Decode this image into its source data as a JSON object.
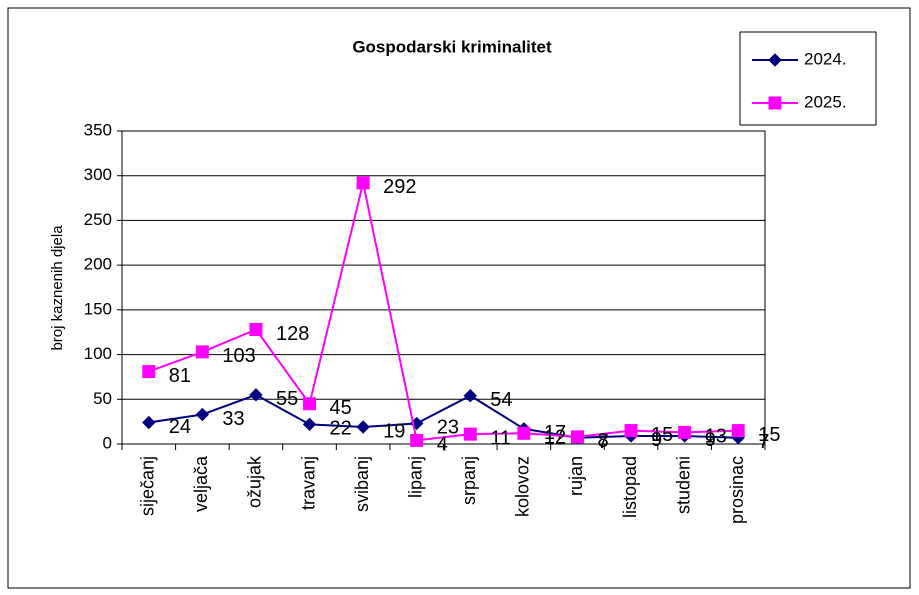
{
  "chart_data": {
    "type": "line",
    "title": "Gospodarski kriminalitet",
    "y_label": "broj kaznenih djela",
    "categories": [
      "siječanj",
      "veljača",
      "ožujak",
      "travanj",
      "svibanj",
      "lipanj",
      "srpanj",
      "kolovoz",
      "rujan",
      "listopad",
      "studeni",
      "prosinac"
    ],
    "series": [
      {
        "name": "2024.",
        "color": "#000080",
        "marker": "diamond",
        "values": [
          24,
          33,
          55,
          22,
          19,
          23,
          54,
          17,
          7,
          9,
          9,
          7
        ]
      },
      {
        "name": "2025.",
        "color": "#ff00ff",
        "marker": "square",
        "values": [
          81,
          103,
          128,
          45,
          292,
          4,
          11,
          12,
          8,
          15,
          13,
          15
        ]
      }
    ],
    "ylim": [
      0,
      350
    ],
    "yticks": [
      0,
      50,
      100,
      150,
      200,
      250,
      300,
      350
    ],
    "grid": true,
    "legend": "top-right"
  }
}
